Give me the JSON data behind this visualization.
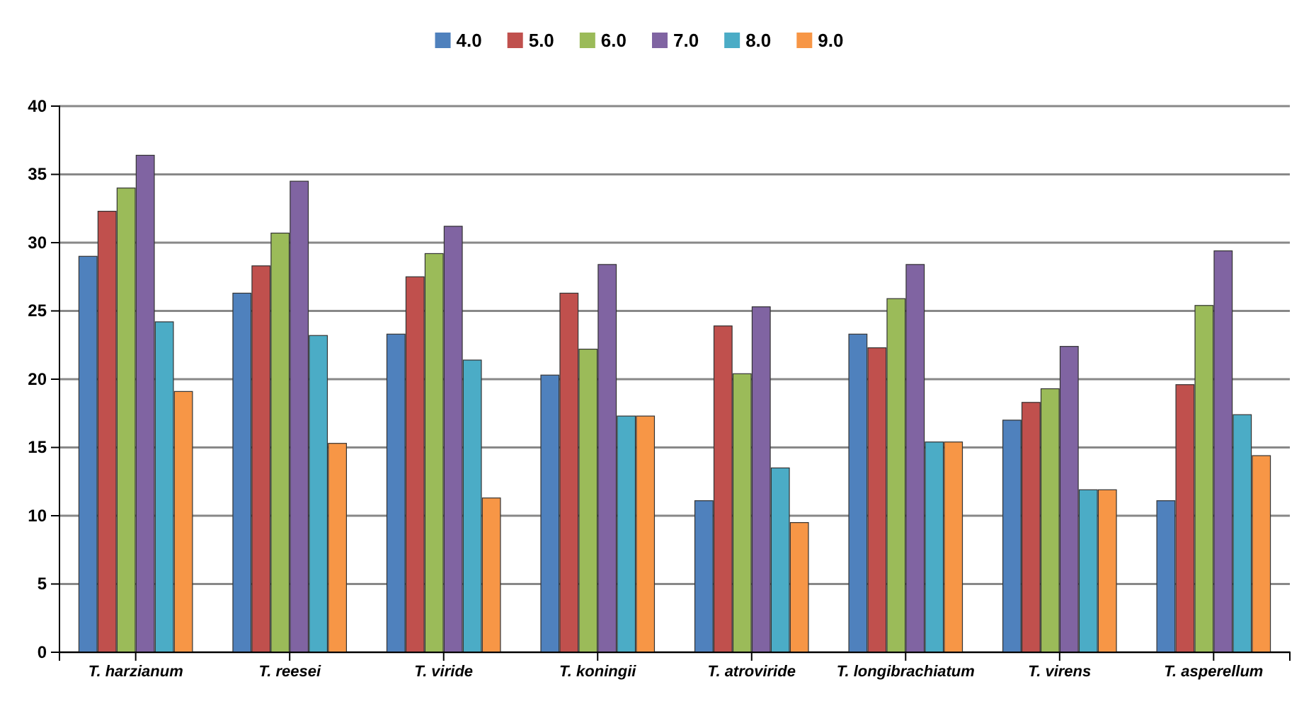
{
  "chart_data": {
    "type": "bar",
    "categories": [
      "T. harzianum",
      "T. reesei",
      "T. viride",
      "T. koningii",
      "T. atroviride",
      "T. longibrachiatum",
      "T. virens",
      "T. asperellum"
    ],
    "series": [
      {
        "name": "4.0",
        "color": "#4f81bd",
        "values": [
          29,
          26.3,
          23.3,
          20.3,
          11.1,
          23.3,
          17,
          11.1
        ]
      },
      {
        "name": "5.0",
        "color": "#c0504d",
        "values": [
          32.3,
          28.3,
          27.5,
          26.3,
          23.9,
          22.3,
          18.3,
          19.6
        ]
      },
      {
        "name": "6.0",
        "color": "#9bbb59",
        "values": [
          34,
          30.7,
          29.2,
          22.2,
          20.4,
          25.9,
          19.3,
          25.4
        ]
      },
      {
        "name": "7.0",
        "color": "#8064a2",
        "values": [
          36.4,
          34.5,
          31.2,
          28.4,
          25.3,
          28.4,
          22.4,
          29.4
        ]
      },
      {
        "name": "8.0",
        "color": "#4bacc6",
        "values": [
          24.2,
          23.2,
          21.4,
          17.3,
          13.5,
          15.4,
          11.9,
          17.4
        ]
      },
      {
        "name": "9.0",
        "color": "#f79646",
        "values": [
          19.1,
          15.3,
          11.3,
          17.3,
          9.5,
          15.4,
          11.9,
          14.4
        ]
      }
    ],
    "ylim": [
      0,
      40
    ],
    "yticks": [
      0,
      5,
      10,
      15,
      20,
      25,
      30,
      35,
      40
    ],
    "grid": "y",
    "legend": "top"
  }
}
